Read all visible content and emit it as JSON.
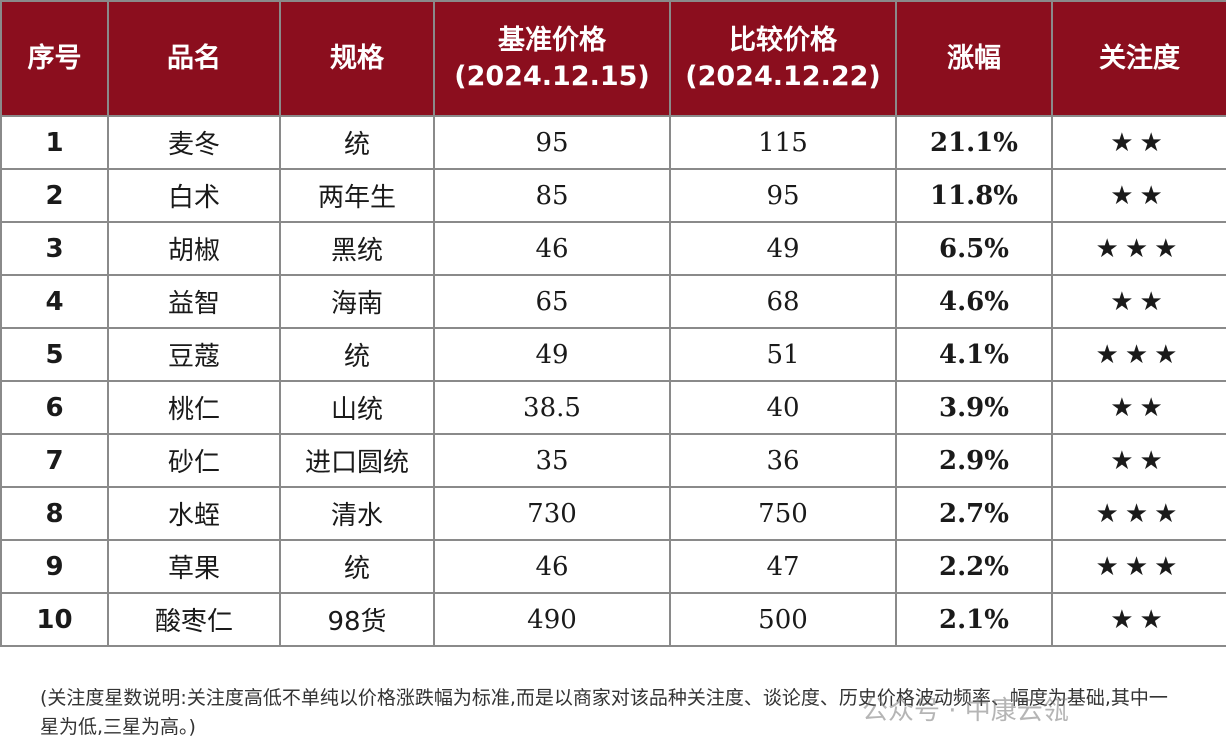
{
  "headers": [
    "序号",
    "品名",
    "规格",
    "基准价格",
    "(2024.12.15)",
    "比较价格",
    "(2024.12.22)",
    "涨幅",
    "关注度"
  ],
  "rows": [
    {
      "idx": "1",
      "name": "麦冬",
      "spec": "统",
      "base": "95",
      "cmp": "115",
      "chg": "21.1%",
      "stars": 2
    },
    {
      "idx": "2",
      "name": "白术",
      "spec": "两年生",
      "base": "85",
      "cmp": "95",
      "chg": "11.8%",
      "stars": 2
    },
    {
      "idx": "3",
      "name": "胡椒",
      "spec": "黑统",
      "base": "46",
      "cmp": "49",
      "chg": "6.5%",
      "stars": 3
    },
    {
      "idx": "4",
      "name": "益智",
      "spec": "海南",
      "base": "65",
      "cmp": "68",
      "chg": "4.6%",
      "stars": 2
    },
    {
      "idx": "5",
      "name": "豆蔻",
      "spec": "统",
      "base": "49",
      "cmp": "51",
      "chg": "4.1%",
      "stars": 3
    },
    {
      "idx": "6",
      "name": "桃仁",
      "spec": "山统",
      "base": "38.5",
      "cmp": "40",
      "chg": "3.9%",
      "stars": 2
    },
    {
      "idx": "7",
      "name": "砂仁",
      "spec": "进口圆统",
      "base": "35",
      "cmp": "36",
      "chg": "2.9%",
      "stars": 2
    },
    {
      "idx": "8",
      "name": "水蛭",
      "spec": "清水",
      "base": "730",
      "cmp": "750",
      "chg": "2.7%",
      "stars": 3
    },
    {
      "idx": "9",
      "name": "草果",
      "spec": "统",
      "base": "46",
      "cmp": "47",
      "chg": "2.2%",
      "stars": 3
    },
    {
      "idx": "10",
      "name": "酸枣仁",
      "spec": "98货",
      "base": "490",
      "cmp": "500",
      "chg": "2.1%",
      "stars": 2
    }
  ],
  "note": "(关注度星数说明:关注度高低不单纯以价格涨跌幅为标准,而是以商家对该品种关注度、谈论度、历史价格波动频率、幅度为基础,其中一星为低,三星为高。)",
  "watermark": "公众号 · 中康云瓴"
}
